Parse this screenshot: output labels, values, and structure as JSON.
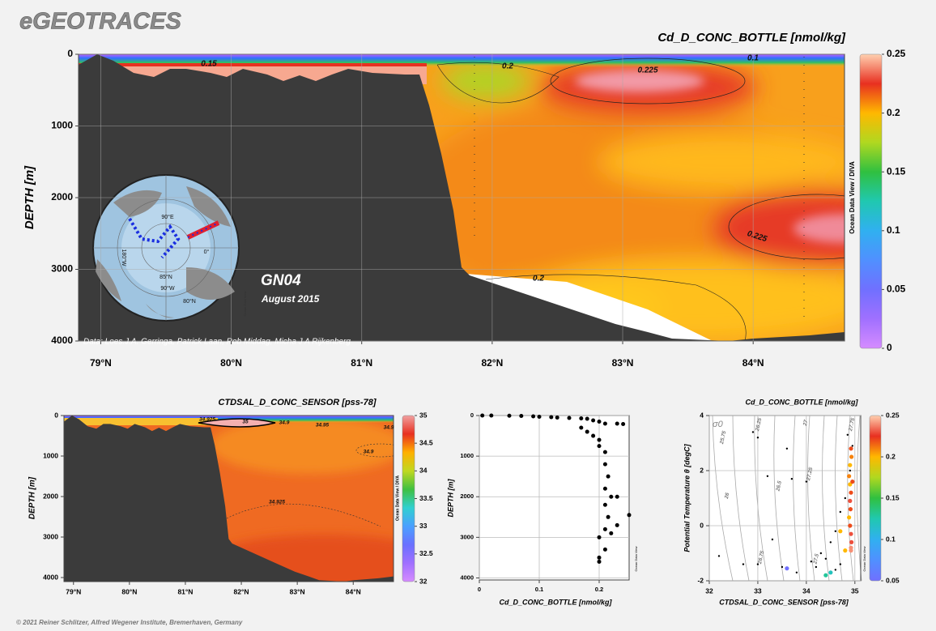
{
  "header": {
    "logo": "eGEOTRACES",
    "copyright": "© 2021 Reiner Schlitzer, Alfred Wegener Institute, Bremerhaven, Germany"
  },
  "chart_data": [
    {
      "type": "section",
      "title": "Cd_D_CONC_BOTTLE [nmol/kg]",
      "y_label": "DEPTH [m]",
      "xlim": [
        78.83,
        84.7
      ],
      "xticks": [
        {
          "value": 79,
          "label": "79°N"
        },
        {
          "value": 80,
          "label": "80°N"
        },
        {
          "value": 81,
          "label": "81°N"
        },
        {
          "value": 82,
          "label": "82°N"
        },
        {
          "value": 83,
          "label": "83°N"
        },
        {
          "value": 84,
          "label": "84°N"
        }
      ],
      "ylim": [
        0,
        4000
      ],
      "y_reversed": true,
      "yticks": [
        0,
        1000,
        2000,
        3000,
        4000
      ],
      "grid": true,
      "clim": [
        0,
        0.25
      ],
      "cticks": [
        0,
        0.05,
        0.1,
        0.15,
        0.2,
        0.25
      ],
      "colormap": [
        "#d58cff",
        "#a070ff",
        "#7070ff",
        "#5090ff",
        "#30b0f0",
        "#20c8b0",
        "#30c040",
        "#b0d820",
        "#ffb800",
        "#e83020",
        "#ffd0b0"
      ],
      "contour_labels": [
        0.15,
        0.2,
        0.225,
        0.1,
        0.225,
        0.2
      ],
      "annotations": {
        "cruise": "GN04",
        "date": "August 2015",
        "credit": "Data: Loes.J.A. Gerringa, Patrick Laan, Rob Middag, Micha J A Rijkenberg"
      },
      "watermark": "Ocean Data View / DIVA",
      "map_labels": [
        "90°E",
        "180°W",
        "0°",
        "85°N",
        "90°W",
        "80°N"
      ],
      "map_watermark": "Ocean Data View"
    },
    {
      "type": "section",
      "title": "CTDSAL_D_CONC_SENSOR [pss-78]",
      "y_label": "DEPTH [m]",
      "xlim": [
        78.83,
        84.72
      ],
      "xticks": [
        {
          "value": 79,
          "label": "79°N"
        },
        {
          "value": 80,
          "label": "80°N"
        },
        {
          "value": 81,
          "label": "81°N"
        },
        {
          "value": 82,
          "label": "82°N"
        },
        {
          "value": 83,
          "label": "83°N"
        },
        {
          "value": 84,
          "label": "84°N"
        }
      ],
      "ylim": [
        0,
        4100
      ],
      "y_reversed": true,
      "yticks": [
        0,
        1000,
        2000,
        3000,
        4000
      ],
      "grid": false,
      "clim": [
        32,
        35
      ],
      "cticks": [
        32,
        32.5,
        33,
        33.5,
        34,
        34.5,
        35
      ],
      "colormap": [
        "#d58cff",
        "#a070ff",
        "#6a70ff",
        "#4aa0ff",
        "#30d0d0",
        "#40c040",
        "#c0d820",
        "#ffb000",
        "#e83020",
        "#f0a0a0"
      ],
      "contour_labels": [
        34.925,
        35,
        34.9,
        34.95,
        34.9,
        34.9,
        34.925
      ],
      "watermark": "Ocean Data View / DIVA"
    },
    {
      "type": "scatter",
      "x_label": "Cd_D_CONC_BOTTLE [nmol/kg]",
      "y_label": "DEPTH [m]",
      "xlim": [
        0,
        0.25
      ],
      "xticks": [
        0,
        0.1,
        0.2
      ],
      "ylim": [
        0,
        4050
      ],
      "y_reversed": true,
      "yticks": [
        0,
        1000,
        2000,
        3000,
        4000
      ],
      "grid": true,
      "color": "#000000",
      "x": [
        0.005,
        0.02,
        0.05,
        0.07,
        0.09,
        0.1,
        0.12,
        0.13,
        0.15,
        0.17,
        0.18,
        0.19,
        0.2,
        0.21,
        0.23,
        0.24,
        0.17,
        0.18,
        0.19,
        0.2,
        0.2,
        0.21,
        0.21,
        0.215,
        0.21,
        0.22,
        0.23,
        0.21,
        0.215,
        0.21,
        0.22,
        0.23,
        0.25,
        0.2,
        0.21,
        0.2,
        0.2
      ],
      "y": [
        0,
        0,
        5,
        10,
        20,
        30,
        40,
        50,
        60,
        70,
        80,
        120,
        150,
        200,
        200,
        210,
        300,
        400,
        500,
        600,
        750,
        900,
        1200,
        1500,
        1800,
        2000,
        2000,
        2200,
        2500,
        2800,
        2900,
        2700,
        2450,
        3000,
        3300,
        3500,
        3600
      ],
      "watermark": "Ocean Data View"
    },
    {
      "type": "scatter",
      "title": "Cd_D_CONC_BOTTLE [nmol/kg]",
      "x_label": "CTDSAL_D_CONC_SENSOR [pss-78]",
      "y_label": "Potential Temperature θ [degC]",
      "xlim": [
        32,
        35.12
      ],
      "xticks": [
        32,
        33,
        34,
        35
      ],
      "ylim": [
        -2,
        4
      ],
      "yticks": [
        -2,
        0,
        2,
        4
      ],
      "grid": true,
      "clim": [
        0.05,
        0.25
      ],
      "cticks": [
        0.05,
        0.1,
        0.15,
        0.2,
        0.25
      ],
      "colormap": [
        "#7070ff",
        "#5090ff",
        "#30b0f0",
        "#20c8b0",
        "#30c040",
        "#b0d820",
        "#ffb800",
        "#e83020",
        "#ffd0b0"
      ],
      "isopycnal_symbol": "σ0",
      "isopycnal_labels": [
        25.75,
        26,
        26.25,
        26.5,
        26.75,
        27,
        27.25,
        27.5,
        27.75
      ],
      "points": {
        "color": "#000000",
        "x": [
          32.2,
          33.0,
          32.7,
          33.5,
          33.7,
          33.6,
          33.2,
          34.0,
          33.3,
          34.2,
          34.4,
          34.5,
          34.6,
          34.7,
          34.3,
          34.8,
          34.9,
          34.95,
          34.85,
          33.0,
          32.9,
          34.6,
          34.7,
          33.8,
          34.1
        ],
        "y": [
          -1.1,
          -1.4,
          -1.4,
          -1.5,
          1.7,
          2.8,
          1.8,
          1.6,
          -0.5,
          -1.5,
          -1.2,
          -0.6,
          -0.2,
          0.5,
          -1.0,
          1.0,
          2.0,
          2.9,
          3.3,
          3.2,
          3.4,
          -1.6,
          -1.4,
          -1.7,
          -1.3
        ]
      },
      "colored_points": {
        "x": [
          34.92,
          34.93,
          34.9,
          34.88,
          34.9,
          34.92,
          34.9,
          34.91,
          34.88,
          34.9,
          34.92,
          34.93,
          34.92,
          34.92,
          34.5,
          34.4,
          33.6,
          34.8,
          34.7,
          34.95
        ],
        "y": [
          2.8,
          2.5,
          2.2,
          1.8,
          1.5,
          1.2,
          0.9,
          0.6,
          0.3,
          0,
          -0.3,
          -0.6,
          -0.8,
          -0.9,
          -1.7,
          -1.8,
          -1.55,
          -0.9,
          -0.2,
          1.6
        ],
        "values": [
          0.22,
          0.21,
          0.2,
          0.21,
          0.2,
          0.22,
          0.23,
          0.22,
          0.2,
          0.22,
          0.23,
          0.23,
          0.24,
          0.24,
          0.12,
          0.13,
          0.05,
          0.2,
          0.2,
          0.22
        ]
      },
      "watermark": "Ocean Data View"
    }
  ]
}
